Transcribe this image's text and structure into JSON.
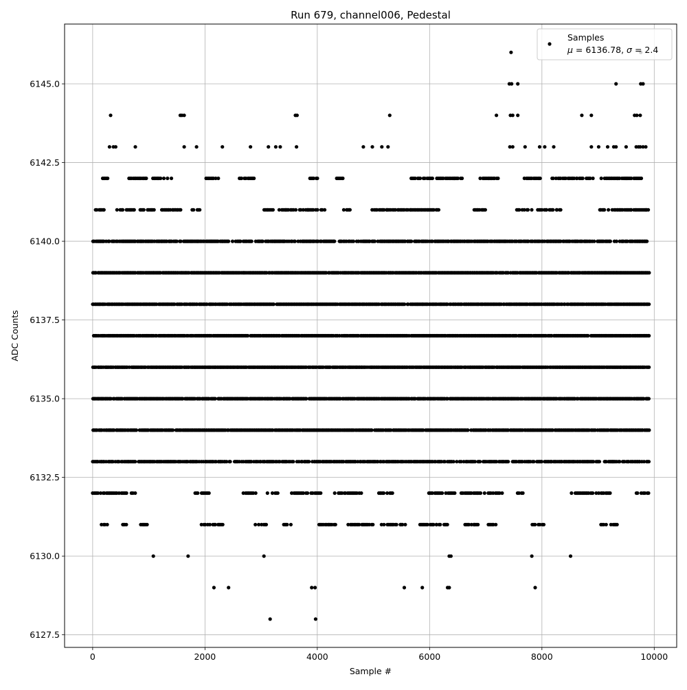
{
  "chart_data": {
    "type": "scatter",
    "title": "Run 679, channel006, Pedestal",
    "xlabel": "Sample #",
    "ylabel": "ADC Counts",
    "xlim": [
      -500,
      10400
    ],
    "ylim": [
      6127.1,
      6146.9
    ],
    "xticks": [
      0,
      2000,
      4000,
      6000,
      8000,
      10000
    ],
    "xtick_labels": [
      "0",
      "2000",
      "4000",
      "6000",
      "8000",
      "10000"
    ],
    "yticks": [
      6127.5,
      6130.0,
      6132.5,
      6135.0,
      6137.5,
      6140.0,
      6142.5,
      6145.0
    ],
    "ytick_labels": [
      "6127.5",
      "6130.0",
      "6132.5",
      "6135.0",
      "6137.5",
      "6140.0",
      "6142.5",
      "6145.0"
    ],
    "grid": true,
    "legend_position": "top-right",
    "series": [
      {
        "name": "Samples",
        "color": "#000000",
        "marker": "circle",
        "sample_range": [
          0,
          9900
        ],
        "levels": [
          6128,
          6129,
          6130,
          6131,
          6132,
          6133,
          6134,
          6135,
          6136,
          6137,
          6138,
          6139,
          6140,
          6141,
          6142,
          6143,
          6144,
          6145,
          6146
        ],
        "dense_levels": [
          6133,
          6134,
          6135,
          6136,
          6137,
          6138,
          6139,
          6140
        ],
        "sparse_levels": [
          6131,
          6132,
          6141,
          6142
        ],
        "outliers": [
          {
            "x": 3160,
            "y": 6128
          },
          {
            "x": 3970,
            "y": 6128
          },
          {
            "x": 2160,
            "y": 6129
          },
          {
            "x": 2420,
            "y": 6129
          },
          {
            "x": 3900,
            "y": 6129
          },
          {
            "x": 3960,
            "y": 6129
          },
          {
            "x": 5550,
            "y": 6129
          },
          {
            "x": 5870,
            "y": 6129
          },
          {
            "x": 6320,
            "y": 6129
          },
          {
            "x": 6350,
            "y": 6129
          },
          {
            "x": 7880,
            "y": 6129
          },
          {
            "x": 1080,
            "y": 6130
          },
          {
            "x": 1700,
            "y": 6130
          },
          {
            "x": 3050,
            "y": 6130
          },
          {
            "x": 6350,
            "y": 6130
          },
          {
            "x": 6380,
            "y": 6130
          },
          {
            "x": 7820,
            "y": 6130
          },
          {
            "x": 8510,
            "y": 6130
          },
          {
            "x": 300,
            "y": 6143
          },
          {
            "x": 370,
            "y": 6143
          },
          {
            "x": 410,
            "y": 6143
          },
          {
            "x": 760,
            "y": 6143
          },
          {
            "x": 1630,
            "y": 6143
          },
          {
            "x": 1850,
            "y": 6143
          },
          {
            "x": 2310,
            "y": 6143
          },
          {
            "x": 2810,
            "y": 6143
          },
          {
            "x": 3130,
            "y": 6143
          },
          {
            "x": 3260,
            "y": 6143
          },
          {
            "x": 3340,
            "y": 6143
          },
          {
            "x": 3630,
            "y": 6143
          },
          {
            "x": 4820,
            "y": 6143
          },
          {
            "x": 4980,
            "y": 6143
          },
          {
            "x": 5150,
            "y": 6143
          },
          {
            "x": 5260,
            "y": 6143
          },
          {
            "x": 7430,
            "y": 6143
          },
          {
            "x": 7480,
            "y": 6143
          },
          {
            "x": 7700,
            "y": 6143
          },
          {
            "x": 7960,
            "y": 6143
          },
          {
            "x": 8050,
            "y": 6143
          },
          {
            "x": 8210,
            "y": 6143
          },
          {
            "x": 8880,
            "y": 6143
          },
          {
            "x": 9010,
            "y": 6143
          },
          {
            "x": 9170,
            "y": 6143
          },
          {
            "x": 9280,
            "y": 6143
          },
          {
            "x": 9320,
            "y": 6143
          },
          {
            "x": 9500,
            "y": 6143
          },
          {
            "x": 9680,
            "y": 6143
          },
          {
            "x": 9720,
            "y": 6143
          },
          {
            "x": 9750,
            "y": 6143
          },
          {
            "x": 9800,
            "y": 6143
          },
          {
            "x": 9850,
            "y": 6143
          },
          {
            "x": 320,
            "y": 6144
          },
          {
            "x": 1560,
            "y": 6144
          },
          {
            "x": 1590,
            "y": 6144
          },
          {
            "x": 1630,
            "y": 6144
          },
          {
            "x": 3610,
            "y": 6144
          },
          {
            "x": 3640,
            "y": 6144
          },
          {
            "x": 5290,
            "y": 6144
          },
          {
            "x": 7190,
            "y": 6144
          },
          {
            "x": 7440,
            "y": 6144
          },
          {
            "x": 7480,
            "y": 6144
          },
          {
            "x": 7570,
            "y": 6144
          },
          {
            "x": 8710,
            "y": 6144
          },
          {
            "x": 8880,
            "y": 6144
          },
          {
            "x": 9650,
            "y": 6144
          },
          {
            "x": 9690,
            "y": 6144
          },
          {
            "x": 9750,
            "y": 6144
          },
          {
            "x": 7420,
            "y": 6145
          },
          {
            "x": 7460,
            "y": 6145
          },
          {
            "x": 7570,
            "y": 6145
          },
          {
            "x": 9320,
            "y": 6145
          },
          {
            "x": 9760,
            "y": 6145
          },
          {
            "x": 9800,
            "y": 6145
          },
          {
            "x": 7450,
            "y": 6146
          },
          {
            "x": 9760,
            "y": 6146
          }
        ]
      }
    ],
    "legend": {
      "label": "Samples",
      "stats": "μ = 6136.78, σ = 2.4",
      "mu": "6136.78",
      "sigma": "2.4"
    }
  }
}
